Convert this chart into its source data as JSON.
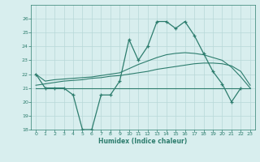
{
  "x": [
    0,
    1,
    2,
    3,
    4,
    5,
    6,
    7,
    8,
    9,
    10,
    11,
    12,
    13,
    14,
    15,
    16,
    17,
    18,
    19,
    20,
    21,
    22,
    23
  ],
  "main_y": [
    22,
    21,
    21,
    21,
    20.5,
    18,
    18,
    20.5,
    20.5,
    21.5,
    24.5,
    23,
    24,
    25.8,
    25.8,
    25.3,
    25.8,
    24.8,
    23.5,
    22.2,
    21.3,
    20,
    21,
    null
  ],
  "line_flat_y": [
    21,
    21,
    21,
    21,
    21,
    21,
    21,
    21,
    21,
    21,
    21,
    21,
    21,
    21,
    21,
    21,
    21,
    21,
    21,
    21,
    21,
    21,
    21,
    21
  ],
  "line_slow_y": [
    21.2,
    21.3,
    21.4,
    21.5,
    21.55,
    21.6,
    21.7,
    21.75,
    21.85,
    21.9,
    22.0,
    22.1,
    22.2,
    22.35,
    22.45,
    22.55,
    22.65,
    22.75,
    22.8,
    22.8,
    22.75,
    22.6,
    22.2,
    21.2
  ],
  "line_fast_y": [
    22,
    21.5,
    21.6,
    21.65,
    21.7,
    21.75,
    21.8,
    21.9,
    22.0,
    22.1,
    22.4,
    22.7,
    22.95,
    23.2,
    23.4,
    23.5,
    23.55,
    23.5,
    23.4,
    23.2,
    23.0,
    22.5,
    21.8,
    21.0
  ],
  "color": "#2d7d6e",
  "bg_color": "#d8eeee",
  "grid_color": "#b8d8d8",
  "ylim": [
    18,
    27
  ],
  "xlim": [
    -0.5,
    23.5
  ],
  "yticks": [
    18,
    19,
    20,
    21,
    22,
    23,
    24,
    25,
    26
  ],
  "xticks": [
    0,
    1,
    2,
    3,
    4,
    5,
    6,
    7,
    8,
    9,
    10,
    11,
    12,
    13,
    14,
    15,
    16,
    17,
    18,
    19,
    20,
    21,
    22,
    23
  ],
  "xlabel": "Humidex (Indice chaleur)"
}
